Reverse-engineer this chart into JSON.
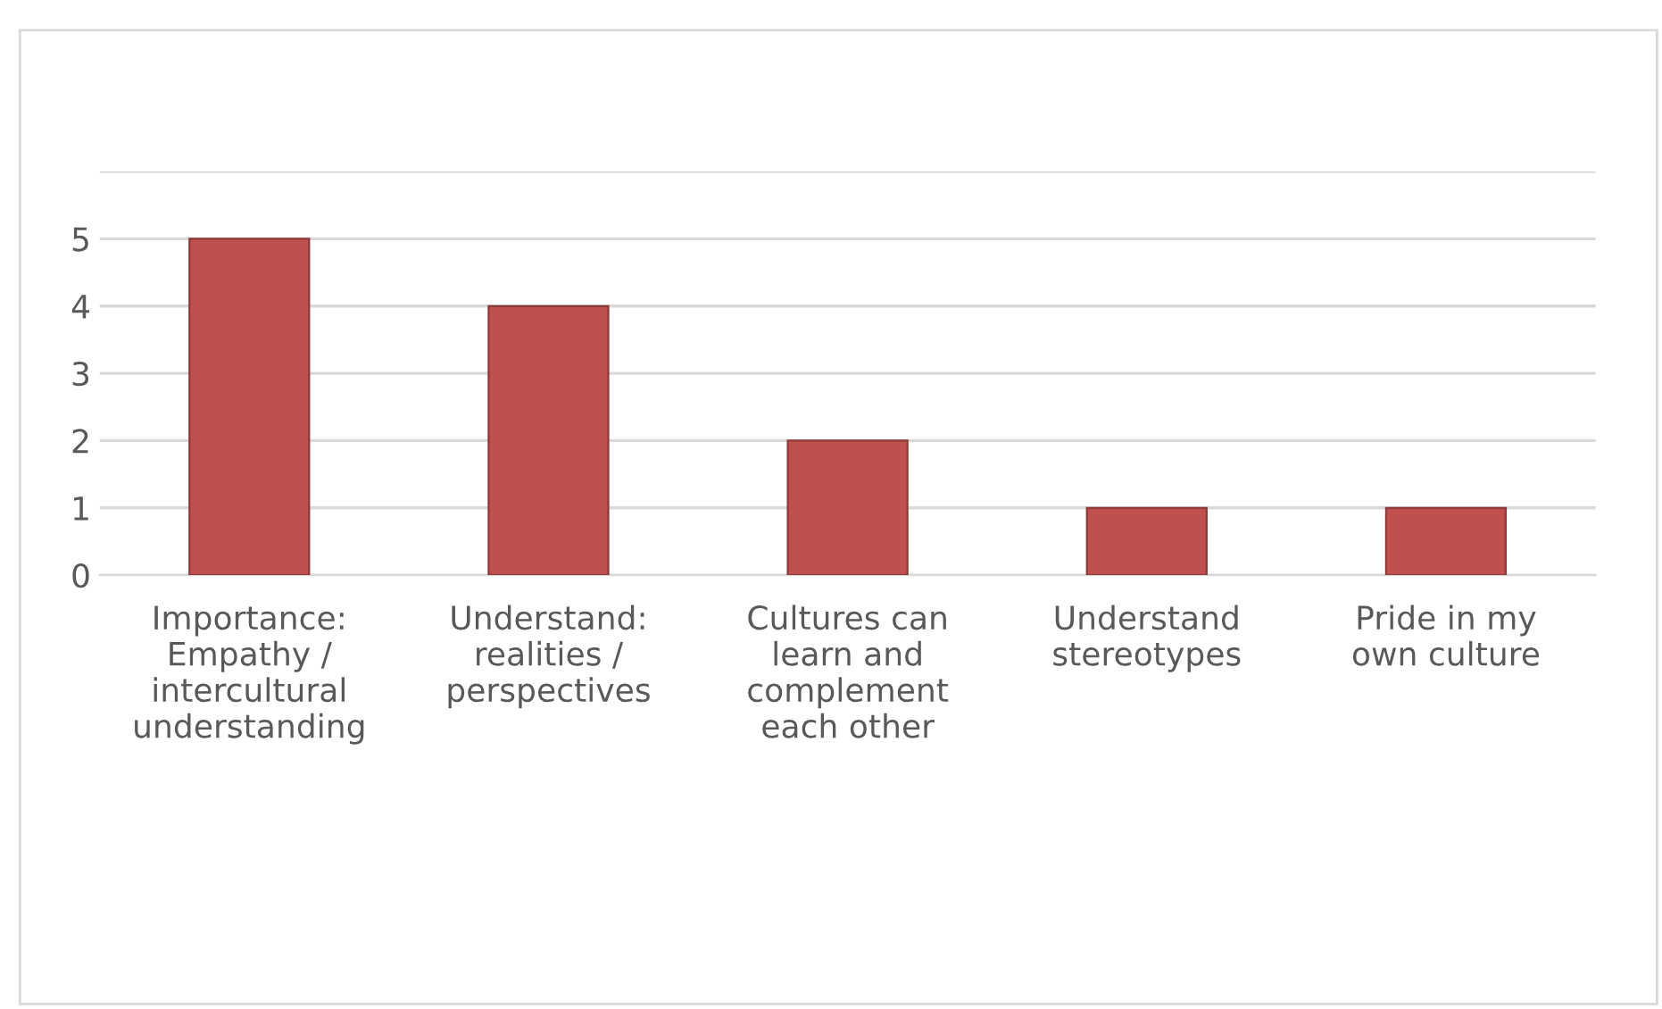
{
  "chart_data": {
    "type": "bar",
    "categories": [
      "Importance:\nEmpathy /\nintercultural\nunderstanding",
      "Understand:\nrealities /\nperspectives",
      "Cultures can\nlearn and\ncomplement\neach other",
      "Understand\nstereotypes",
      "Pride in my\nown culture"
    ],
    "values": [
      5,
      4,
      2,
      1,
      1
    ],
    "color": "#c0504d",
    "ylim": [
      0,
      6
    ],
    "yticks": [
      0,
      1,
      2,
      3,
      4,
      5,
      {
        "value": 6,
        "label": null
      }
    ],
    "grid": "y"
  }
}
